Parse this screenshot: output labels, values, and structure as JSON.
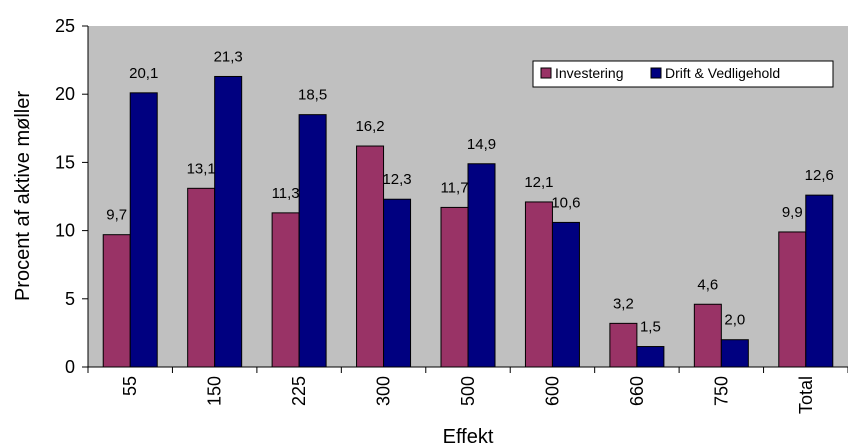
{
  "chart_data": {
    "type": "bar",
    "categories": [
      "55",
      "150",
      "225",
      "300",
      "500",
      "600",
      "660",
      "750",
      "Total"
    ],
    "series": [
      {
        "name": "Investering",
        "color": "#993366",
        "values": [
          9.7,
          13.1,
          11.3,
          16.2,
          11.7,
          12.1,
          3.2,
          4.6,
          9.9
        ],
        "labels": [
          "9,7",
          "13,1",
          "11,3",
          "16,2",
          "11,7",
          "12,1",
          "3,2",
          "4,6",
          "9,9"
        ]
      },
      {
        "name": "Drift & Vedligehold",
        "color": "#000080",
        "values": [
          20.1,
          21.3,
          18.5,
          12.3,
          14.9,
          10.6,
          1.5,
          2.0,
          12.6
        ],
        "labels": [
          "20,1",
          "21,3",
          "18,5",
          "12,3",
          "14,9",
          "10,6",
          "1,5",
          "2,0",
          "12,6"
        ]
      }
    ],
    "xlabel": "Effekt",
    "ylabel": "Procent af aktive møller",
    "ylim": [
      0,
      25
    ],
    "yticks": [
      "0",
      "5",
      "10",
      "15",
      "20",
      "25"
    ],
    "grid": false,
    "legend_position": "top-right",
    "plot_background": "#c0c0c0"
  }
}
